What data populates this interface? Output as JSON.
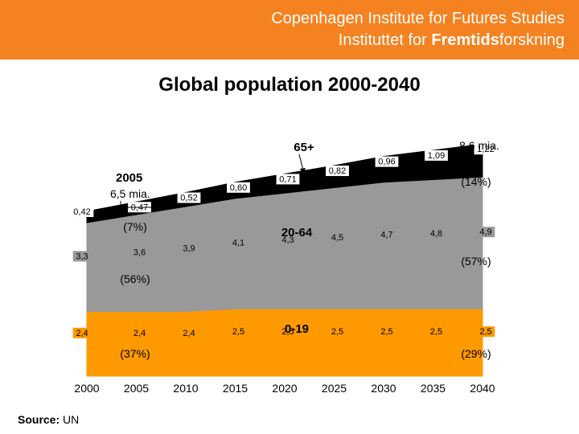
{
  "header": {
    "line1": "Copenhagen Institute for Futures Studies",
    "line2_pre": "Instituttet for ",
    "line2_bold": "Fremtids",
    "line2_post": "forskning",
    "color": "#f58220"
  },
  "title": "Global population 2000-2040",
  "source": {
    "label": "Source:",
    "value": "UN"
  },
  "chart_data": {
    "type": "area",
    "stacked": true,
    "x": [
      "2000",
      "2005",
      "2010",
      "2015",
      "2020",
      "2025",
      "2030",
      "2035",
      "2040"
    ],
    "series": [
      {
        "name": "0-19",
        "color": "#ff9900",
        "values": [
          2.4,
          2.4,
          2.4,
          2.5,
          2.5,
          2.5,
          2.5,
          2.5,
          2.5
        ],
        "labels": [
          "2,4",
          "2,4",
          "2,4",
          "2,5",
          "2,5",
          "2,5",
          "2,5",
          "2,5",
          "2,5"
        ]
      },
      {
        "name": "20-64",
        "color": "#999999",
        "values": [
          3.3,
          3.6,
          3.9,
          4.1,
          4.3,
          4.5,
          4.7,
          4.8,
          4.9
        ],
        "labels": [
          "3,3",
          "3,6",
          "3,9",
          "4,1",
          "4,3",
          "4,5",
          "4,7",
          "4,8",
          "4,9"
        ]
      },
      {
        "name": "65+",
        "color": "#000000",
        "values": [
          0.42,
          0.47,
          0.52,
          0.6,
          0.71,
          0.82,
          0.96,
          1.09,
          1.22
        ],
        "labels": [
          "0,42",
          "0,47",
          "0,52",
          "0,60",
          "0,71",
          "0,82",
          "0,96",
          "1,09",
          "1,22"
        ]
      }
    ],
    "shares_2005": [
      "(37%)",
      "(56%)",
      "(7%)"
    ],
    "shares_2040": [
      "(29%)",
      "(57%)",
      "(14%)"
    ],
    "annotations": {
      "year": "2005",
      "total_2005": "6,5 mia.",
      "total_2040": "8,6 mia."
    },
    "legend": "none"
  }
}
